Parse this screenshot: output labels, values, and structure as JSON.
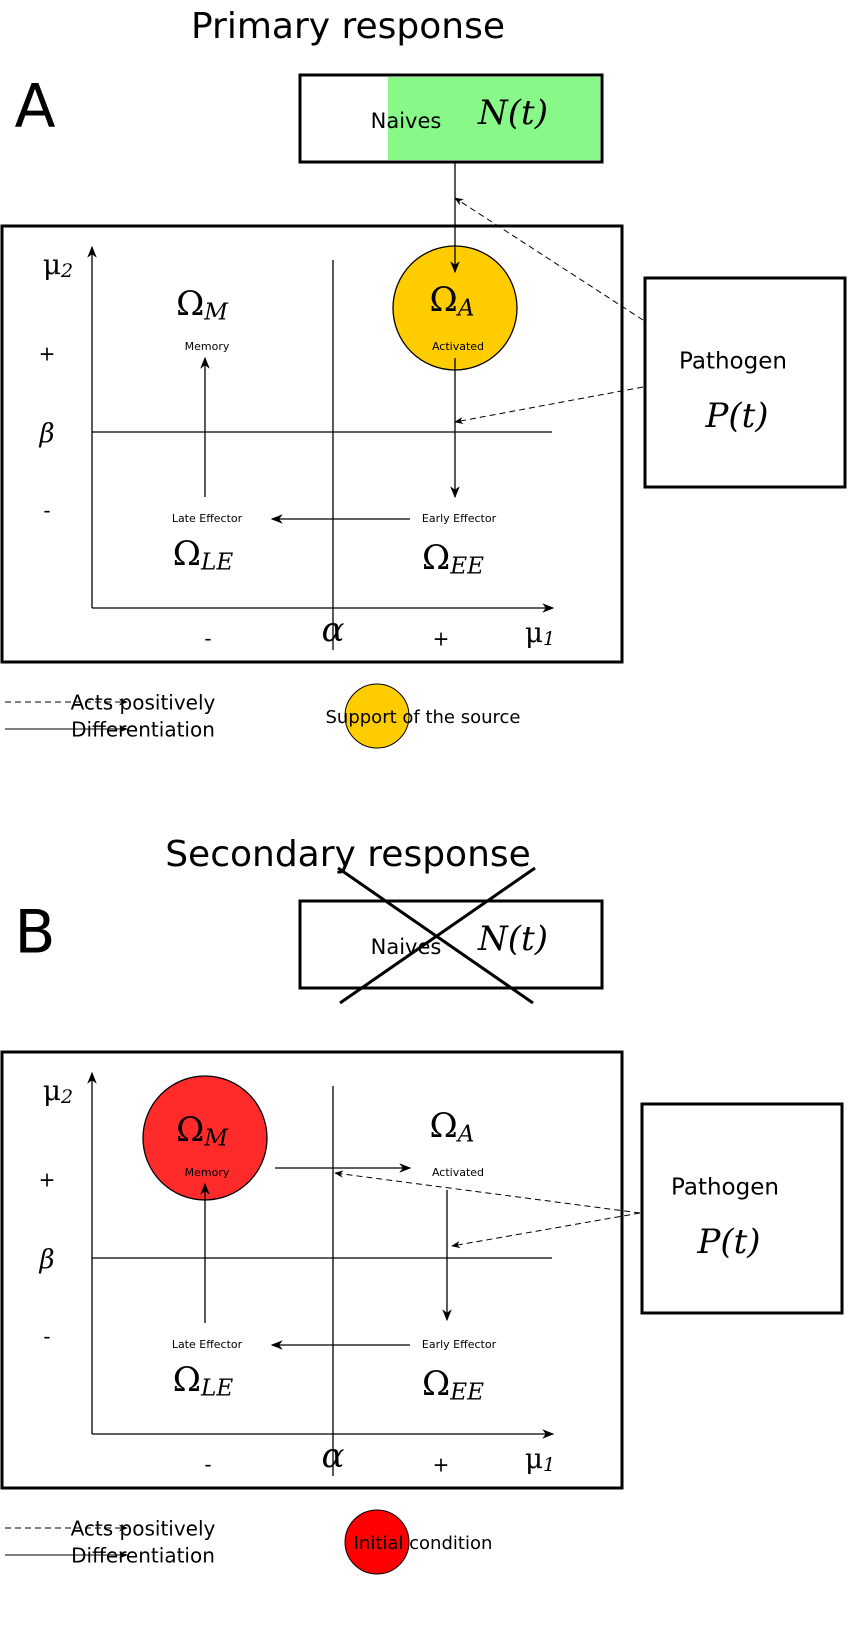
{
  "panels": [
    {
      "letter": "A",
      "title": "Primary response",
      "naives": {
        "label": "Naives",
        "symbol": "N(t)"
      },
      "pathogen": {
        "label": "Pathogen",
        "symbol": "P(t)"
      },
      "axes": {
        "y": {
          "symbol": "μ",
          "sub": "2"
        },
        "x": {
          "symbol": "μ",
          "sub": "1"
        },
        "alpha": "α",
        "beta": "β",
        "plus_y": "+",
        "minus_y": "-",
        "minus_x": "-",
        "plus_x": "+"
      },
      "regions": {
        "memory": {
          "symbol": "Ω",
          "sub": "M",
          "label": "Memory"
        },
        "activated": {
          "symbol": "Ω",
          "sub": "A",
          "label": "Activated"
        },
        "late": {
          "symbol": "Ω",
          "sub": "LE",
          "label": "Late Effector"
        },
        "early": {
          "symbol": "Ω",
          "sub": "EE",
          "label": "Early Effector"
        }
      },
      "legend": {
        "dashed": "Acts positively",
        "solid": "Differentiation",
        "circle": "Support of the source"
      }
    },
    {
      "letter": "B",
      "title": "Secondary response",
      "naives": {
        "label": "Naives",
        "symbol": "N(t)"
      },
      "pathogen": {
        "label": "Pathogen",
        "symbol": "P(t)"
      },
      "axes": {
        "y": {
          "symbol": "μ",
          "sub": "2"
        },
        "x": {
          "symbol": "μ",
          "sub": "1"
        },
        "alpha": "α",
        "beta": "β",
        "plus_y": "+",
        "minus_y": "-",
        "minus_x": "-",
        "plus_x": "+"
      },
      "regions": {
        "memory": {
          "symbol": "Ω",
          "sub": "M",
          "label": "Memory"
        },
        "activated": {
          "symbol": "Ω",
          "sub": "A",
          "label": "Activated"
        },
        "late": {
          "symbol": "Ω",
          "sub": "LE",
          "label": "Late Effector"
        },
        "early": {
          "symbol": "Ω",
          "sub": "EE",
          "label": "Early Effector"
        }
      },
      "legend": {
        "dashed": "Acts positively",
        "solid": "Differentiation",
        "circle": "Initial condition"
      }
    }
  ]
}
